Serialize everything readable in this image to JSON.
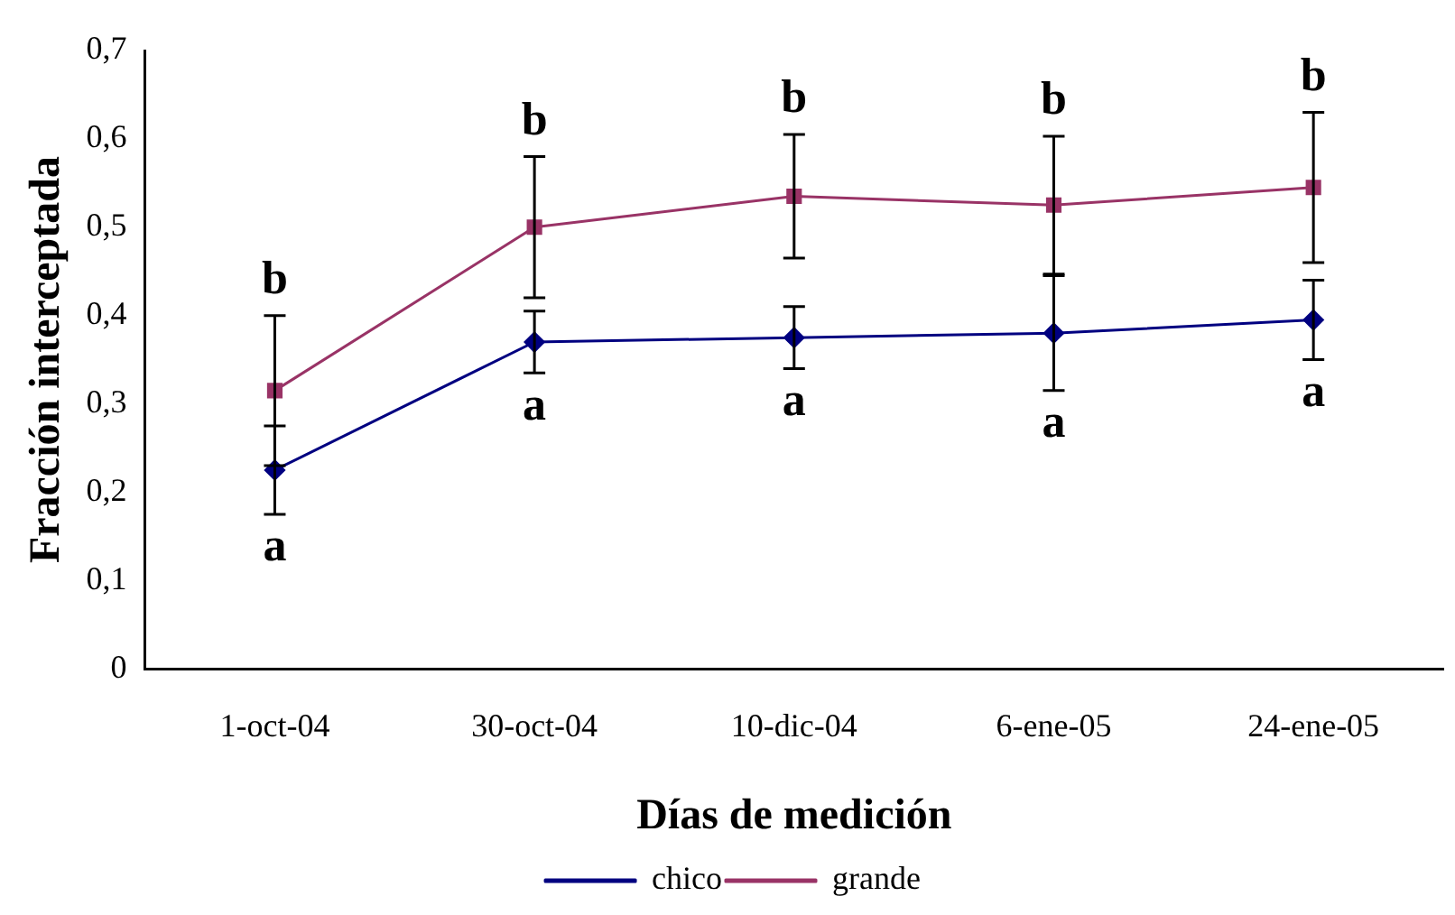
{
  "chart_data": {
    "type": "line",
    "xlabel": "Días de medición",
    "ylabel": "Fracción interceptada",
    "categories": [
      "1-oct-04",
      "30-oct-04",
      "10-dic-04",
      "6-ene-05",
      "24-ene-05"
    ],
    "series": [
      {
        "name": "chico",
        "color": "#000080",
        "marker": "diamond",
        "values": [
          0.225,
          0.37,
          0.375,
          0.38,
          0.395
        ],
        "errors": [
          0.05,
          0.035,
          0.035,
          0.065,
          0.045
        ]
      },
      {
        "name": "grande",
        "color": "#993366",
        "marker": "square",
        "values": [
          0.315,
          0.5,
          0.535,
          0.525,
          0.545
        ],
        "errors": [
          0.085,
          0.08,
          0.07,
          0.078,
          0.085
        ]
      }
    ],
    "ylim": [
      0,
      0.7
    ],
    "yticks": [
      0,
      {
        "value": 0.1,
        "label": "0,1"
      },
      {
        "value": 0.2,
        "label": "0,2"
      },
      {
        "value": 0.3,
        "label": "0,3"
      },
      {
        "value": 0.4,
        "label": "0,4"
      },
      {
        "value": 0.5,
        "label": "0,5"
      },
      {
        "value": 0.6,
        "label": "0,6"
      },
      {
        "value": 0.7,
        "label": "0,7"
      }
    ],
    "grid": false,
    "legend": "bottom",
    "line_style": "solid",
    "annotations": [
      {
        "text": "b",
        "x": "1-oct-04",
        "y": 0.4
      },
      {
        "text": "b",
        "x": "30-oct-04",
        "y": 0.58
      },
      {
        "text": "b",
        "x": "10-dic-04",
        "y": 0.605
      },
      {
        "text": "b",
        "x": "6-ene-05",
        "y": 0.603
      },
      {
        "text": "b",
        "x": "24-ene-05",
        "y": 0.63
      },
      {
        "text": "a",
        "x": "1-oct-04",
        "y": 0.175
      },
      {
        "text": "a",
        "x": "30-oct-04",
        "y": 0.335
      },
      {
        "text": "a",
        "x": "10-dic-04",
        "y": 0.34
      },
      {
        "text": "a",
        "x": "6-ene-05",
        "y": 0.315
      },
      {
        "text": "a",
        "x": "24-ene-05",
        "y": 0.35
      }
    ]
  }
}
